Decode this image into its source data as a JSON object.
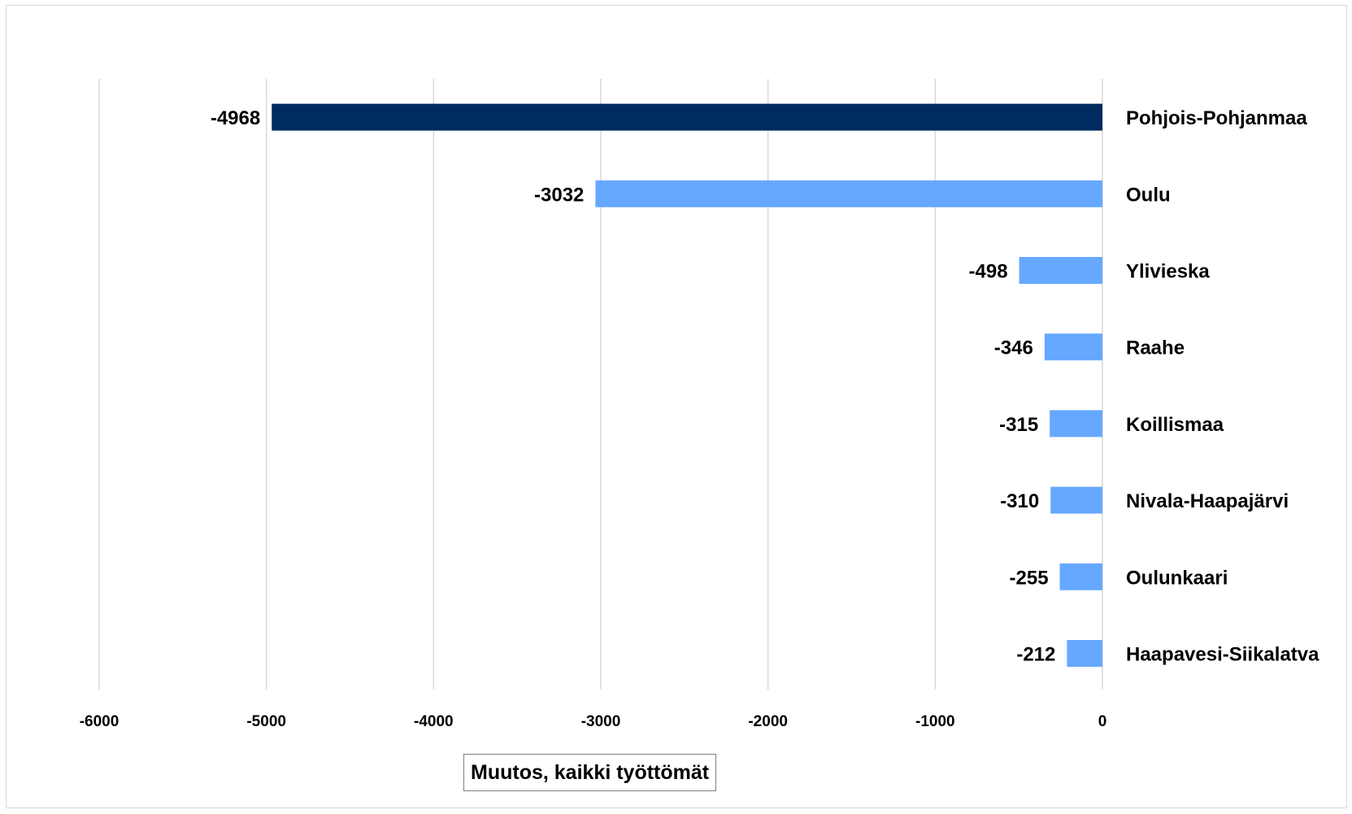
{
  "chart_data": {
    "type": "bar",
    "orientation": "horizontal",
    "categories": [
      "Pohjois-Pohjanmaa",
      "Oulu",
      "Ylivieska",
      "Raahe",
      "Koillismaa",
      "Nivala-Haapajärvi",
      "Oulunkaari",
      "Haapavesi-Siikalatva"
    ],
    "series": [
      {
        "name": "Muutos, kaikki työttömät",
        "values": [
          -4968,
          -3032,
          -498,
          -346,
          -315,
          -310,
          -255,
          -212
        ]
      }
    ],
    "data_labels": [
      "-4968",
      "-3032",
      "-498",
      "-346",
      "-315",
      "-310",
      "-255",
      "-212"
    ],
    "xlim": [
      -6000,
      0
    ],
    "xticks": [
      "-6000",
      "-5000",
      "-4000",
      "-3000",
      "-2000",
      "-1000",
      "0"
    ],
    "grid": "vertical",
    "legend_position": "bottom",
    "highlight_category": "Pohjois-Pohjanmaa",
    "colors": {
      "highlight": "#002b60",
      "default": "#66a8ff",
      "grid": "#d9d9d9",
      "axis": "#d9d9d9"
    }
  },
  "legend": {
    "label": "Muutos, kaikki työttömät"
  }
}
